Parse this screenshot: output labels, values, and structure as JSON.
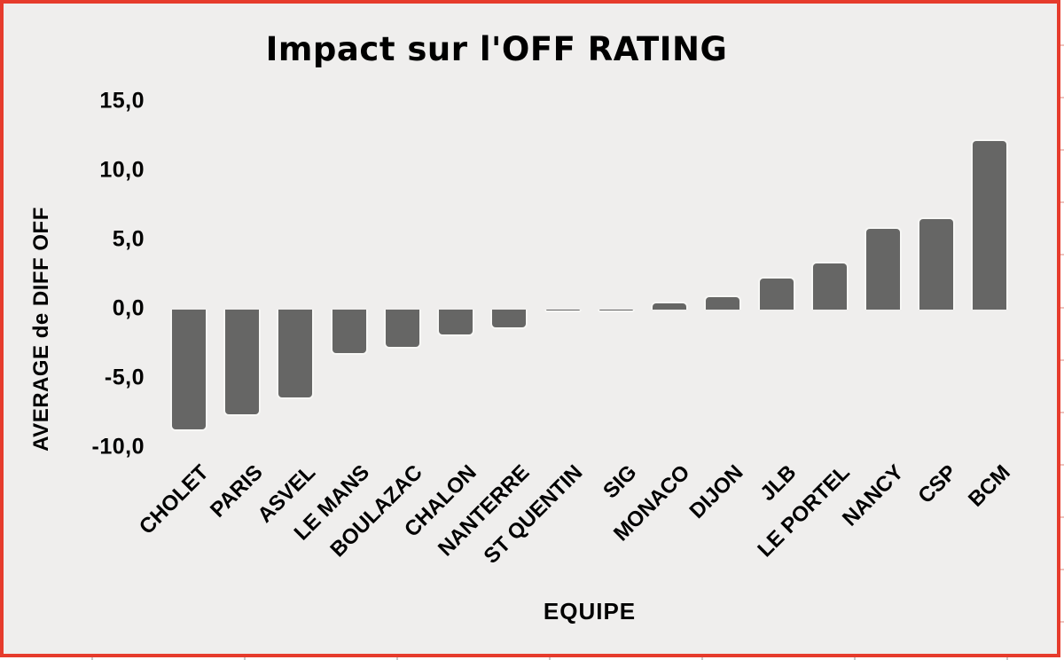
{
  "chart_data": {
    "type": "bar",
    "title": "Impact sur l'OFF RATING",
    "xlabel": "EQUIPE",
    "ylabel": "AVERAGE de DIFF OFF",
    "categories": [
      "CHOLET",
      "PARIS",
      "ASVEL",
      "LE MANS",
      "BOULAZAC",
      "CHALON",
      "NANTERRE",
      "ST QUENTIN",
      "SIG",
      "MONACO",
      "DIJON",
      "JLB",
      "LE PORTEL",
      "NANCY",
      "CSP",
      "BCM"
    ],
    "values": [
      -8.8,
      -7.7,
      -6.5,
      -3.3,
      -2.8,
      -1.9,
      -1.4,
      -0.2,
      -0.2,
      0.6,
      1.0,
      2.4,
      3.5,
      6.0,
      6.7,
      12.3
    ],
    "ylim": [
      -10,
      15
    ],
    "yticks": [
      {
        "label": "15,0",
        "value": 15
      },
      {
        "label": "10,0",
        "value": 10
      },
      {
        "label": "5,0",
        "value": 5
      },
      {
        "label": "0,0",
        "value": 0
      },
      {
        "label": "-5,0",
        "value": -5
      },
      {
        "label": "-10,0",
        "value": -10
      }
    ],
    "grid": false,
    "legend_position": "none"
  },
  "colors": {
    "frame_border": "#e63b2c",
    "chart_background": "#efeeed",
    "bar_fill": "#666665",
    "bar_outline": "#f7f7f5",
    "text": "#000000"
  }
}
